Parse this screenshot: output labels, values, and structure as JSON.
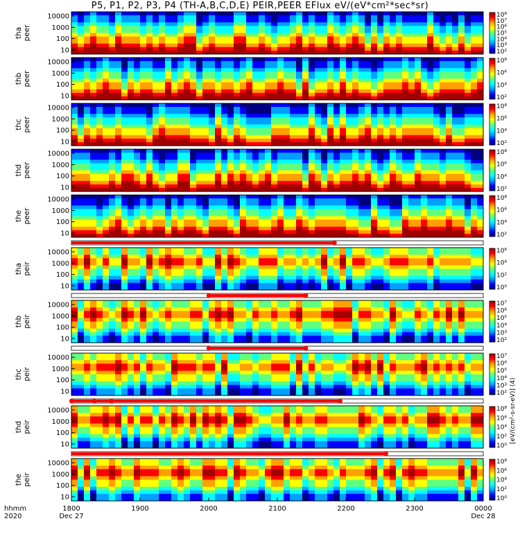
{
  "title": "P5, P1, P2, P3, P4 (TH-A,B,C,D,E) PEIR,PEER EFlux eV/(eV*cm²*sec*sr)",
  "colorbar_unit_label": "[eV/(cm²-s-sr-eV)] (4)",
  "time_axis": {
    "row1_label": "hhmm",
    "row2_label": "2020",
    "ticks": [
      {
        "hhmm": "1800",
        "date": "Dec 27"
      },
      {
        "hhmm": "1900",
        "date": ""
      },
      {
        "hhmm": "2000",
        "date": ""
      },
      {
        "hhmm": "2100",
        "date": ""
      },
      {
        "hhmm": "2200",
        "date": ""
      },
      {
        "hhmm": "2300",
        "date": ""
      },
      {
        "hhmm": "0000",
        "date": "Dec 28"
      }
    ]
  },
  "chart_data": {
    "type": "heatmap",
    "description_of_axes": {
      "x": "time (UT), 2020 Dec 27 18:00 to Dec 28 00:00",
      "y": "energy (eV), log scale",
      "z": "energy flux eV/(eV*cm^2*sec*sr), log color scale"
    },
    "x_range": [
      "1800",
      "0000"
    ],
    "y_scale": "log",
    "color_scale": "log",
    "panels": [
      {
        "probe": "tha",
        "species": "peer",
        "y_ticks": [
          "10",
          "100",
          "1000",
          "10000"
        ],
        "cbar_ticks": [
          "10²",
          "10³",
          "10⁴",
          "10⁵",
          "10⁶",
          "10⁷",
          "10⁸"
        ]
      },
      {
        "probe": "thb",
        "species": "peer",
        "y_ticks": [
          "10",
          "100",
          "1000",
          "10000"
        ],
        "cbar_ticks": [
          "10²",
          "10⁴",
          "10⁶",
          "10⁸"
        ]
      },
      {
        "probe": "thc",
        "species": "peer",
        "y_ticks": [
          "10",
          "100",
          "1000",
          "10000"
        ],
        "cbar_ticks": [
          "10²",
          "10⁴",
          "10⁶",
          "10⁸"
        ]
      },
      {
        "probe": "thd",
        "species": "peer",
        "y_ticks": [
          "10",
          "100",
          "1000",
          "10000"
        ],
        "cbar_ticks": [
          "10²",
          "10⁴",
          "10⁶",
          "10⁸"
        ]
      },
      {
        "probe": "the",
        "species": "peer",
        "y_ticks": [
          "10",
          "100",
          "1000",
          "10000"
        ],
        "cbar_ticks": [
          "10²",
          "10⁴",
          "10⁶",
          "10⁸"
        ]
      },
      {
        "probe": "tha",
        "species": "peir",
        "y_ticks": [
          "10",
          "100",
          "1000",
          "10000"
        ],
        "cbar_ticks": [
          "10⁰",
          "10²",
          "10⁴",
          "10⁶"
        ]
      },
      {
        "probe": "thb",
        "species": "peir",
        "y_ticks": [
          "10",
          "100",
          "1000",
          "10000"
        ],
        "cbar_ticks": [
          "10²",
          "10³",
          "10⁴",
          "10⁵",
          "10⁶",
          "10⁷"
        ]
      },
      {
        "probe": "thc",
        "species": "peir",
        "y_ticks": [
          "10",
          "100",
          "1000",
          "10000"
        ],
        "cbar_ticks": [
          "10²",
          "10³",
          "10⁴",
          "10⁵",
          "10⁶",
          "10⁷"
        ]
      },
      {
        "probe": "thd",
        "species": "peir",
        "y_ticks": [
          "10",
          "100",
          "1000",
          "10000"
        ],
        "cbar_ticks": [
          "10⁰",
          "10²",
          "10⁴",
          "10⁶",
          "10⁸"
        ]
      },
      {
        "probe": "the",
        "species": "peir",
        "y_ticks": [
          "10",
          "100",
          "1000",
          "10000"
        ],
        "cbar_ticks": [
          "10⁰",
          "10²",
          "10⁴",
          "10⁶",
          "10⁸"
        ]
      }
    ],
    "mode_bars": [
      {
        "below_panel": 5,
        "red_segments": [
          [
            "1800",
            "2150"
          ]
        ],
        "markers": [
          "2150"
        ]
      },
      {
        "below_panel": 6,
        "red_segments": [
          [
            "2000",
            "2125"
          ]
        ],
        "markers": [
          "2000",
          "2125"
        ]
      },
      {
        "below_panel": 7,
        "red_segments": [
          [
            "2000",
            "2125"
          ]
        ],
        "markers": [
          "2000",
          "2125"
        ]
      },
      {
        "below_panel": 8,
        "red_segments": [
          [
            "1800",
            "2155"
          ]
        ],
        "markers": [
          "1800",
          "1820",
          "1835",
          "2155"
        ]
      },
      {
        "below_panel": 9,
        "red_segments": [
          [
            "1800",
            "2235"
          ]
        ],
        "markers": [
          "2235"
        ]
      }
    ],
    "colormap": [
      "#000080",
      "#0000ff",
      "#00a0ff",
      "#00ffff",
      "#60ff80",
      "#ffff00",
      "#ffa000",
      "#ff0000",
      "#a00000"
    ]
  }
}
